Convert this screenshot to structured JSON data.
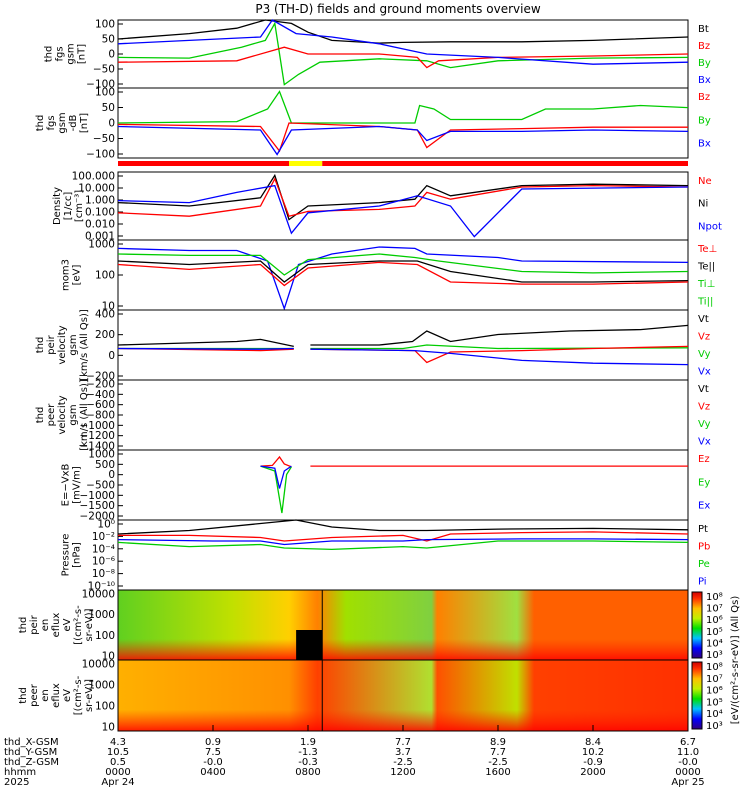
{
  "title": "P3 (TH-D) fields and ground moments overview",
  "colors": {
    "black": "#000000",
    "red": "#ff0000",
    "green": "#00cc00",
    "blue": "#0000ff",
    "yellow": "#ffff00"
  },
  "panels": [
    {
      "id": "fgs-gsm",
      "ylabel": [
        "thd",
        "fgs",
        "gsm",
        "[nT]"
      ],
      "ticks": [
        "100",
        "50",
        "0",
        "−50",
        "−100"
      ],
      "legend": [
        {
          "text": "Bt",
          "color": "black"
        },
        {
          "text": "Bz",
          "color": "red"
        },
        {
          "text": "By",
          "color": "green"
        },
        {
          "text": "Bx",
          "color": "blue"
        }
      ]
    },
    {
      "id": "fgs-gsm-detrend",
      "ylabel": [
        "thd",
        "fgs",
        "gsm",
        "-dB",
        "[nT]"
      ],
      "ticks": [
        "100",
        "50",
        "0",
        "−50",
        "−100"
      ],
      "legend": [
        {
          "text": "Bz",
          "color": "red"
        },
        {
          "text": "By",
          "color": "green"
        },
        {
          "text": "Bx",
          "color": "blue"
        }
      ]
    },
    {
      "id": "density",
      "ylabel": [
        "Density",
        "[1/cc]",
        "[cm⁻³]"
      ],
      "ticks": [
        "100.000",
        "10.000",
        "1.000",
        "0.100",
        "0.010",
        "0.001"
      ],
      "legend": [
        {
          "text": "Ne",
          "color": "red"
        },
        {
          "text": "Ni",
          "color": "black"
        },
        {
          "text": "Npot",
          "color": "blue"
        }
      ]
    },
    {
      "id": "temperature",
      "ylabel": [
        "mom3",
        "[eV]"
      ],
      "ticks": [
        "1000",
        "100",
        "10"
      ],
      "legend": [
        {
          "text": "Te⊥",
          "color": "red"
        },
        {
          "text": "Te||",
          "color": "black"
        },
        {
          "text": "Ti⊥",
          "color": "green"
        },
        {
          "text": "Ti||",
          "color": "green"
        }
      ]
    },
    {
      "id": "peir-velocity",
      "ylabel": [
        "thd",
        "peir",
        "velocity",
        "gsm",
        "[km/s (All Qs)]"
      ],
      "ticks": [
        "400",
        "200",
        "0",
        "−200"
      ],
      "legend": [
        {
          "text": "Vt",
          "color": "black"
        },
        {
          "text": "Vz",
          "color": "red"
        },
        {
          "text": "Vy",
          "color": "green"
        },
        {
          "text": "Vx",
          "color": "blue"
        }
      ]
    },
    {
      "id": "peer-velocity",
      "ylabel": [
        "thd",
        "peer",
        "velocity",
        "gsm",
        "[km/s (All Qs)]"
      ],
      "ticks": [
        "−200",
        "−400",
        "−600",
        "−800",
        "−1000",
        "−1200",
        "−1400"
      ],
      "legend": [
        {
          "text": "Vt",
          "color": "black"
        },
        {
          "text": "Vz",
          "color": "red"
        },
        {
          "text": "Vy",
          "color": "green"
        },
        {
          "text": "Vx",
          "color": "blue"
        }
      ]
    },
    {
      "id": "efield",
      "ylabel": [
        "E=−VxB",
        "[mV/m]"
      ],
      "ticks": [
        "1000",
        "500",
        "0",
        "−500",
        "−1000",
        "−1500",
        "−2000"
      ],
      "legend": [
        {
          "text": "Ez",
          "color": "red"
        },
        {
          "text": "Ey",
          "color": "green"
        },
        {
          "text": "Ex",
          "color": "blue"
        }
      ]
    },
    {
      "id": "pressure",
      "ylabel": [
        "Pressure",
        "[nPa]"
      ],
      "ticks": [
        "10⁰",
        "10⁻²",
        "10⁻⁴",
        "10⁻⁶",
        "10⁻⁸",
        "10⁻¹⁰"
      ],
      "legend": [
        {
          "text": "Pt",
          "color": "black"
        },
        {
          "text": "Pb",
          "color": "red"
        },
        {
          "text": "Pe",
          "color": "green"
        },
        {
          "text": "Pi",
          "color": "blue"
        }
      ]
    },
    {
      "id": "peir-eflux",
      "ylabel": [
        "thd",
        "peir",
        "en",
        "eflux",
        "eV",
        "[(cm²-s-",
        "sr-eV)]"
      ],
      "ticks": [
        "10000",
        "1000",
        "100",
        "10"
      ]
    },
    {
      "id": "peer-eflux",
      "ylabel": [
        "thd",
        "peer",
        "en",
        "eflux",
        "eV",
        "[(cm²-s-",
        "sr-eV)]"
      ],
      "ticks": [
        "10000",
        "1000",
        "100",
        "10"
      ]
    }
  ],
  "colorbar": {
    "label": "[eV/(cm²-s-sr-eV)] (All Qs)",
    "ticks": [
      "10⁸",
      "10⁷",
      "10⁶",
      "10⁵",
      "10⁴",
      "10³"
    ]
  },
  "time_axis": {
    "row_labels": [
      "thd_X-GSM",
      "thd_Y-GSM",
      "thd_Z-GSM",
      "hhmm",
      "2025"
    ],
    "columns": [
      {
        "x": "4.3",
        "y": "10.5",
        "z": "0.5",
        "hhmm": "0000",
        "date": "Apr 24"
      },
      {
        "x": "0.9",
        "y": "7.5",
        "z": "-0.0",
        "hhmm": "0400",
        "date": ""
      },
      {
        "x": "1.9",
        "y": "-1.3",
        "z": "-0.3",
        "hhmm": "0800",
        "date": ""
      },
      {
        "x": "7.7",
        "y": "3.7",
        "z": "-2.5",
        "hhmm": "1200",
        "date": ""
      },
      {
        "x": "8.9",
        "y": "7.7",
        "z": "-2.5",
        "hhmm": "1600",
        "date": ""
      },
      {
        "x": "8.4",
        "y": "10.2",
        "z": "-0.9",
        "hhmm": "2000",
        "date": ""
      },
      {
        "x": "6.7",
        "y": "11.0",
        "z": "-0.0",
        "hhmm": "0000",
        "date": "Apr 25"
      }
    ]
  },
  "chart_data": {
    "type": "line",
    "title": "P3 (TH-D) fields and ground moments overview",
    "x_unit": "hours since 2025-04-24 00:00",
    "x_ticks": [
      "0000",
      "0400",
      "0800",
      "1200",
      "1600",
      "2000",
      "0000"
    ],
    "series": [
      {
        "name": "Bt",
        "x": [
          0,
          3,
          6,
          7.2,
          8,
          9,
          11,
          14,
          17,
          20,
          24
        ],
        "y": [
          30,
          55,
          120,
          60,
          60,
          15,
          15,
          30,
          30,
          35,
          40
        ]
      },
      {
        "name": "Bz",
        "x": [
          0,
          3,
          6,
          8,
          11,
          13,
          14,
          17,
          20,
          24
        ],
        "y": [
          -20,
          -15,
          -5,
          10,
          0,
          -25,
          -10,
          5,
          10,
          15
        ]
      },
      {
        "name": "By",
        "x": [
          0,
          3,
          6,
          6.5,
          8,
          11,
          14,
          17,
          20,
          24
        ],
        "y": [
          -10,
          -10,
          30,
          100,
          -90,
          -15,
          -10,
          -5,
          -10,
          -5
        ]
      },
      {
        "name": "Bx",
        "x": [
          0,
          3,
          6,
          7,
          8,
          11,
          14,
          17,
          20,
          24
        ],
        "y": [
          25,
          35,
          40,
          -100,
          40,
          15,
          5,
          -15,
          -25,
          -25
        ]
      },
      {
        "name": "Ne",
        "x": [
          0,
          3,
          6,
          7.2,
          8,
          11,
          14,
          17,
          20,
          24
        ],
        "y": [
          0.3,
          0.2,
          1,
          20,
          0.2,
          0.3,
          0.5,
          5,
          5,
          5
        ]
      },
      {
        "name": "Vt",
        "x": [
          0,
          3,
          6,
          7,
          12,
          14,
          16,
          20,
          24
        ],
        "y": [
          30,
          20,
          50,
          40,
          30,
          60,
          70,
          150,
          250
        ]
      },
      {
        "name": "Pt",
        "x": [
          0,
          3,
          6,
          7.5,
          9,
          12,
          16,
          20,
          24
        ],
        "y": [
          0.3,
          0.5,
          2,
          5,
          1,
          0.5,
          0.4,
          0.4,
          0.3
        ]
      }
    ]
  }
}
